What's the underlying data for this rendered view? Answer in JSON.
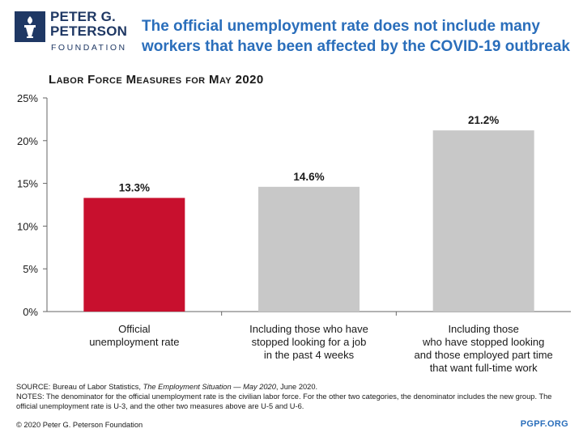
{
  "header": {
    "logo_line1": "PETER G.",
    "logo_line2": "PETERSON",
    "logo_line3": "FOUNDATION",
    "headline": "The official unemployment rate does not include many workers that have been affected by the COVID-19 outbreak"
  },
  "chart_data": {
    "type": "bar",
    "title": "Labor Force Measures for May 2020",
    "categories": [
      [
        "Official",
        "unemployment rate"
      ],
      [
        "Including those who have",
        "stopped looking for a job",
        "in the past 4 weeks"
      ],
      [
        "Including those",
        "who have stopped looking",
        "and those employed part time",
        "that want full-time work"
      ]
    ],
    "values": [
      13.3,
      14.6,
      21.2
    ],
    "data_labels": [
      "13.3%",
      "14.6%",
      "21.2%"
    ],
    "bar_colors": [
      "#c8102e",
      "#c8c8c8",
      "#c8c8c8"
    ],
    "ylim": [
      0,
      25
    ],
    "yticks": [
      0,
      5,
      10,
      15,
      20,
      25
    ],
    "ytick_labels": [
      "0%",
      "5%",
      "10%",
      "15%",
      "20%",
      "25%"
    ],
    "grid": false,
    "xlabel": "",
    "ylabel": ""
  },
  "footer": {
    "source_prefix": "SOURCE: Bureau of Labor Statistics, ",
    "source_italic": "The Employment Situation — May 2020",
    "source_suffix": ", June 2020.",
    "notes": "NOTES: The denominator for the official unemployment rate is the civilian labor force. For the other two categories, the denominator includes the new group. The official unemployment rate is U-3, and the other two measures above are U-5 and U-6.",
    "copyright": "© 2020 Peter G. Peterson Foundation",
    "site": "PGPF.ORG"
  },
  "colors": {
    "brand_blue": "#2a6ebb",
    "navy": "#1f3864",
    "highlight_red": "#c8102e",
    "bar_gray": "#c8c8c8"
  }
}
